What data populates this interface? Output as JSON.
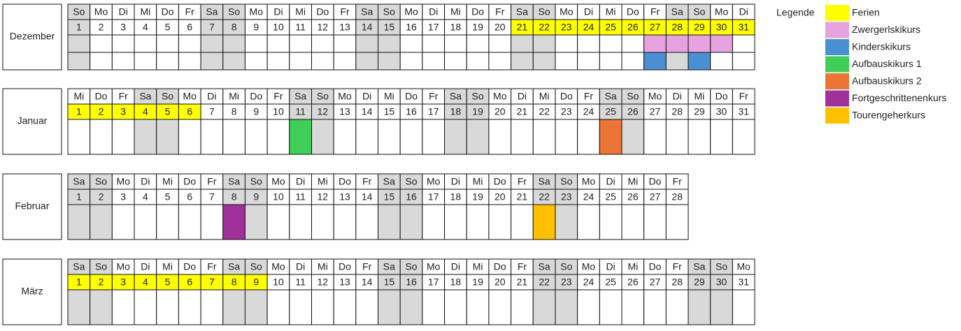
{
  "legend": {
    "title": "Legende",
    "items": [
      {
        "label": "Ferien",
        "color": "#ffff00"
      },
      {
        "label": "Zwergerlskikurs",
        "color": "#e6a3e0"
      },
      {
        "label": "Kinderskikurs",
        "color": "#4a8ed4"
      },
      {
        "label": "Aufbauskikurs 1",
        "color": "#3fcf58"
      },
      {
        "label": "Aufbauskikurs 2",
        "color": "#ec7434"
      },
      {
        "label": "Fortgeschrittenenkurs",
        "color": "#a0309a"
      },
      {
        "label": "Tourengeherkurs",
        "color": "#ffc000"
      }
    ]
  },
  "weekend": [
    "Sa",
    "So"
  ],
  "weekend_color": "#d9d9d9",
  "months": [
    {
      "name": "Dezember",
      "weekdays": [
        "So",
        "Mo",
        "Di",
        "Mi",
        "Do",
        "Fr",
        "Sa",
        "So",
        "Mo",
        "Di",
        "Mi",
        "Do",
        "Fr",
        "Sa",
        "So",
        "Mo",
        "Di",
        "Mi",
        "Do",
        "Fr",
        "Sa",
        "So",
        "Mo",
        "Di",
        "Mi",
        "Do",
        "Fr",
        "Sa",
        "So",
        "Mo",
        "Di"
      ],
      "days": [
        1,
        2,
        3,
        4,
        5,
        6,
        7,
        8,
        9,
        10,
        11,
        12,
        13,
        14,
        15,
        16,
        17,
        18,
        19,
        20,
        21,
        22,
        23,
        24,
        25,
        26,
        27,
        28,
        29,
        30,
        31
      ],
      "highlight": {
        "item": 0,
        "days": [
          21,
          22,
          23,
          24,
          25,
          26,
          27,
          28,
          29,
          30,
          31
        ]
      },
      "courses": [
        {
          "item": 1,
          "row": 0,
          "days": [
            27,
            28,
            29,
            30
          ]
        },
        {
          "item": 2,
          "row": 1,
          "days": [
            27,
            29
          ]
        }
      ]
    },
    {
      "name": "Januar",
      "weekdays": [
        "Mi",
        "Do",
        "Fr",
        "Sa",
        "So",
        "Mo",
        "Di",
        "Mi",
        "Do",
        "Fr",
        "Sa",
        "So",
        "Mo",
        "Di",
        "Mi",
        "Do",
        "Fr",
        "Sa",
        "So",
        "Mo",
        "Di",
        "Mi",
        "Do",
        "Fr",
        "Sa",
        "So",
        "Mo",
        "Di",
        "Mi",
        "Do",
        "Fr"
      ],
      "days": [
        1,
        2,
        3,
        4,
        5,
        6,
        7,
        8,
        9,
        10,
        11,
        12,
        13,
        14,
        15,
        16,
        17,
        18,
        19,
        20,
        21,
        22,
        23,
        24,
        25,
        26,
        27,
        28,
        29,
        30,
        31
      ],
      "highlight": {
        "item": 0,
        "days": [
          1,
          2,
          3,
          4,
          5,
          6
        ]
      },
      "courses": [
        {
          "item": 3,
          "row": 0,
          "days": [
            11
          ]
        },
        {
          "item": 4,
          "row": 0,
          "days": [
            25
          ]
        }
      ]
    },
    {
      "name": "Februar",
      "weekdays": [
        "Sa",
        "So",
        "Mo",
        "Di",
        "Mi",
        "Do",
        "Fr",
        "Sa",
        "So",
        "Mo",
        "Di",
        "Mi",
        "Do",
        "Fr",
        "Sa",
        "So",
        "Mo",
        "Di",
        "Mi",
        "Do",
        "Fr",
        "Sa",
        "So",
        "Mo",
        "Di",
        "Mi",
        "Do",
        "Fr"
      ],
      "days": [
        1,
        2,
        3,
        4,
        5,
        6,
        7,
        8,
        9,
        10,
        11,
        12,
        13,
        14,
        15,
        16,
        17,
        18,
        19,
        20,
        21,
        22,
        23,
        24,
        25,
        26,
        27,
        28
      ],
      "highlight": {
        "item": 0,
        "days": []
      },
      "courses": [
        {
          "item": 5,
          "row": 0,
          "days": [
            8
          ]
        },
        {
          "item": 6,
          "row": 0,
          "days": [
            22
          ]
        }
      ]
    },
    {
      "name": "März",
      "weekdays": [
        "Sa",
        "So",
        "Mo",
        "Di",
        "Mi",
        "Do",
        "Fr",
        "Sa",
        "So",
        "Mo",
        "Di",
        "Mi",
        "Do",
        "Fr",
        "Sa",
        "So",
        "Mo",
        "Di",
        "Mi",
        "Do",
        "Fr",
        "Sa",
        "So",
        "Mo",
        "Di",
        "Mi",
        "Do",
        "Fr",
        "Sa",
        "So",
        "Mo"
      ],
      "days": [
        1,
        2,
        3,
        4,
        5,
        6,
        7,
        8,
        9,
        10,
        11,
        12,
        13,
        14,
        15,
        16,
        17,
        18,
        19,
        20,
        21,
        22,
        23,
        24,
        25,
        26,
        27,
        28,
        29,
        30,
        31
      ],
      "highlight": {
        "item": 0,
        "days": [
          1,
          2,
          3,
          4,
          5,
          6,
          7,
          8,
          9
        ]
      },
      "courses": []
    }
  ]
}
